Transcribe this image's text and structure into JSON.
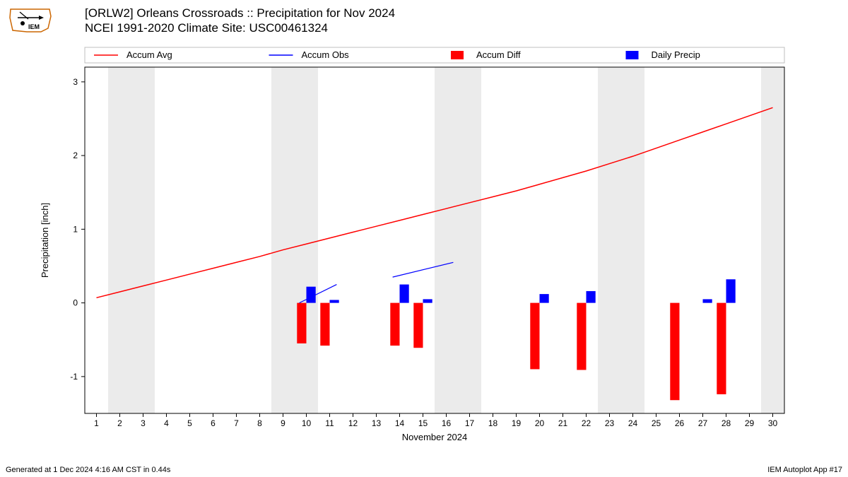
{
  "title_line1": "[ORLW2] Orleans Crossroads :: Precipitation for Nov 2024",
  "title_line2": "NCEI 1991-2020 Climate Site: USC00461324",
  "footer_left": "Generated at 1 Dec 2024 4:16 AM CST in 0.44s",
  "footer_right": "IEM Autoplot App #17",
  "legend": [
    {
      "label": "Accum Avg",
      "type": "line",
      "color": "#ff0000"
    },
    {
      "label": "Accum Obs",
      "type": "line",
      "color": "#0000ff"
    },
    {
      "label": "Accum Diff",
      "type": "bar",
      "color": "#ff0000"
    },
    {
      "label": "Daily Precip",
      "type": "bar",
      "color": "#0000ff"
    }
  ],
  "chart": {
    "xlabel": "November 2024",
    "ylabel": "Precipitation [inch]",
    "xlim": [
      0.5,
      30.5
    ],
    "ylim": [
      -1.5,
      3.2
    ],
    "yticks": [
      -1,
      0,
      1,
      2,
      3
    ],
    "xticks": [
      1,
      2,
      3,
      4,
      5,
      6,
      7,
      8,
      9,
      10,
      11,
      12,
      13,
      14,
      15,
      16,
      17,
      18,
      19,
      20,
      21,
      22,
      23,
      24,
      25,
      26,
      27,
      28,
      29,
      30
    ],
    "background_color": "#ffffff",
    "grid_color": "#ebebeb",
    "axis_fontsize": 12,
    "label_fontsize": 13,
    "weekend_bands": [
      [
        1.5,
        3.5
      ],
      [
        8.5,
        10.5
      ],
      [
        15.5,
        17.5
      ],
      [
        22.5,
        24.5
      ],
      [
        29.5,
        30.5
      ]
    ],
    "weekend_color": "#ebebeb",
    "accum_avg": {
      "color": "#ff0000",
      "linewidth": 1.5,
      "x": [
        1,
        2,
        3,
        4,
        5,
        6,
        7,
        8,
        9,
        10,
        11,
        12,
        13,
        14,
        15,
        16,
        17,
        18,
        19,
        20,
        21,
        22,
        23,
        24,
        25,
        26,
        27,
        28,
        29,
        30
      ],
      "y": [
        0.07,
        0.15,
        0.23,
        0.31,
        0.39,
        0.47,
        0.55,
        0.63,
        0.72,
        0.8,
        0.88,
        0.96,
        1.04,
        1.12,
        1.2,
        1.28,
        1.36,
        1.44,
        1.52,
        1.61,
        1.7,
        1.79,
        1.89,
        1.99,
        2.1,
        2.21,
        2.32,
        2.43,
        2.54,
        2.65
      ]
    },
    "accum_obs": {
      "color": "#0000ff",
      "linewidth": 1.2,
      "segments": [
        {
          "x": [
            9.7,
            11.3
          ],
          "y": [
            0.0,
            0.25
          ]
        },
        {
          "x": [
            13.7,
            16.3
          ],
          "y": [
            0.35,
            0.55
          ]
        }
      ]
    },
    "accum_diff_bars": {
      "color": "#ff0000",
      "width": 0.4,
      "x": [
        10,
        11,
        14,
        15,
        20,
        22,
        26,
        28
      ],
      "y": [
        -0.55,
        -0.58,
        -0.58,
        -0.61,
        -0.9,
        -0.91,
        -1.32,
        -1.24
      ]
    },
    "daily_precip_bars": {
      "color": "#0000ff",
      "width": 0.4,
      "x": [
        10,
        11,
        14,
        15,
        20,
        22,
        27,
        28
      ],
      "y": [
        0.22,
        0.04,
        0.25,
        0.05,
        0.12,
        0.16,
        0.05,
        0.32
      ]
    }
  }
}
